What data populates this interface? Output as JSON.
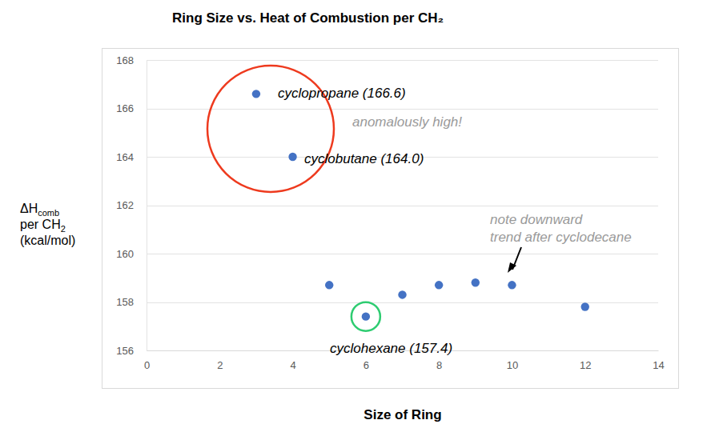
{
  "chart_data": {
    "type": "scatter",
    "title": "Ring Size vs. Heat of Combustion per CH₂",
    "x_label": "Size of Ring",
    "y_label": [
      {
        "text": "ΔH",
        "sub": "comb"
      },
      {
        "text": "per CH",
        "sub": "2"
      },
      {
        "text": "(kcal/mol)"
      }
    ],
    "x": [
      3,
      4,
      5,
      6,
      7,
      8,
      9,
      10,
      12
    ],
    "y": [
      166.6,
      164.0,
      158.7,
      157.4,
      158.3,
      158.7,
      158.8,
      158.7,
      157.8
    ],
    "color": "#4472c4",
    "marker": "circle",
    "xlim": [
      0,
      14
    ],
    "xticks": [
      0,
      2,
      4,
      6,
      8,
      10,
      12,
      14
    ],
    "ylim": [
      156,
      168
    ],
    "yticks": [
      156,
      158,
      160,
      162,
      164,
      166,
      168
    ],
    "grid": true,
    "annotations": [
      {
        "text": [
          "cyclopropane (166.6)"
        ]
      },
      {
        "text": [
          "cyclobutane (164.0)"
        ]
      },
      {
        "text": [
          "cyclohexane (157.4)"
        ]
      },
      {
        "text": [
          "anomalously high!"
        ]
      },
      {
        "text": [
          "note downward",
          "trend after cyclodecane"
        ]
      }
    ]
  }
}
